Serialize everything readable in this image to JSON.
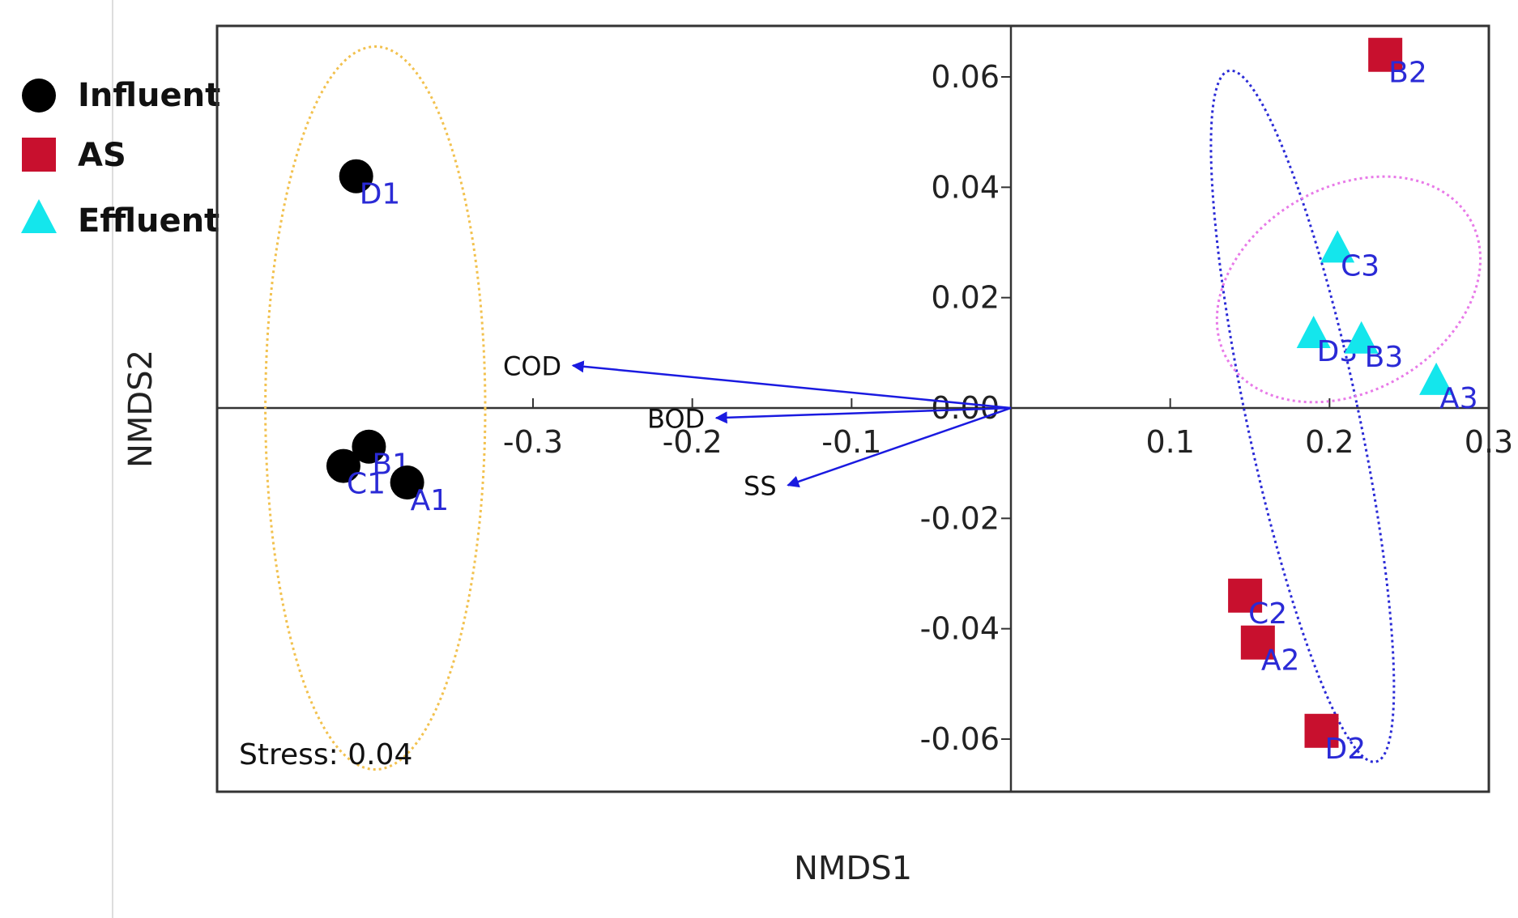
{
  "chart_data": {
    "type": "scatter",
    "title": "",
    "xlabel": "NMDS1",
    "ylabel": "NMDS2",
    "xlim": [
      -0.5,
      0.3
    ],
    "ylim": [
      -0.07,
      0.07
    ],
    "x_ticks": [
      -0.3,
      -0.2,
      -0.1,
      0.1,
      0.2,
      0.3
    ],
    "x_tick_labels": [
      "-0.3",
      "-0.2",
      "-0.1",
      "0.1",
      "0.2",
      "0.3"
    ],
    "y_ticks": [
      0.06,
      0.04,
      0.02,
      0.0,
      -0.02,
      -0.04,
      -0.06
    ],
    "y_tick_labels": [
      "0.06",
      "0.04",
      "0.02",
      "0.00",
      "-0.02",
      "-0.04",
      "-0.06"
    ],
    "legend": [
      {
        "name": "Influent",
        "shape": "circle",
        "color": "#000000"
      },
      {
        "name": "AS",
        "shape": "square",
        "color": "#c8102e"
      },
      {
        "name": "Effluent",
        "shape": "triangle",
        "color": "#14e6ec"
      }
    ],
    "series": [
      {
        "name": "Influent",
        "shape": "circle",
        "color": "#000000",
        "points": [
          {
            "label": "D1",
            "x": -0.411,
            "y": 0.042
          },
          {
            "label": "B1",
            "x": -0.403,
            "y": -0.007
          },
          {
            "label": "C1",
            "x": -0.419,
            "y": -0.0105
          },
          {
            "label": "A1",
            "x": -0.379,
            "y": -0.0135
          }
        ]
      },
      {
        "name": "AS",
        "shape": "square",
        "color": "#c8102e",
        "points": [
          {
            "label": "B2",
            "x": 0.235,
            "y": 0.064
          },
          {
            "label": "C2",
            "x": 0.147,
            "y": -0.034
          },
          {
            "label": "A2",
            "x": 0.155,
            "y": -0.0425
          },
          {
            "label": "D2",
            "x": 0.195,
            "y": -0.0585
          }
        ]
      },
      {
        "name": "Effluent",
        "shape": "triangle",
        "color": "#14e6ec",
        "points": [
          {
            "label": "C3",
            "x": 0.205,
            "y": 0.029
          },
          {
            "label": "D3",
            "x": 0.19,
            "y": 0.0135
          },
          {
            "label": "B3",
            "x": 0.22,
            "y": 0.0125
          },
          {
            "label": "A3",
            "x": 0.267,
            "y": 0.005
          }
        ]
      }
    ],
    "vectors": [
      {
        "label": "COD",
        "x": -0.275,
        "y": 0.0077
      },
      {
        "label": "BOD",
        "x": -0.185,
        "y": -0.0018
      },
      {
        "label": "SS",
        "x": -0.14,
        "y": -0.014
      }
    ],
    "ellipses": [
      {
        "group": "Influent",
        "color": "#f2c14e",
        "cx": -0.399,
        "cy": 0.0,
        "rx": 0.069,
        "ry": 0.0655,
        "angle": 0
      },
      {
        "group": "AS",
        "color": "#2a2ad6",
        "cx": 0.183,
        "cy": -0.0015,
        "rx": 0.035,
        "ry": 0.064,
        "angle": 12
      },
      {
        "group": "Effluent",
        "color": "#e87ae8",
        "cx": 0.212,
        "cy": 0.0215,
        "rx": 0.088,
        "ry": 0.0185,
        "angle": 30
      }
    ],
    "annotation": "Stress: 0.04"
  }
}
